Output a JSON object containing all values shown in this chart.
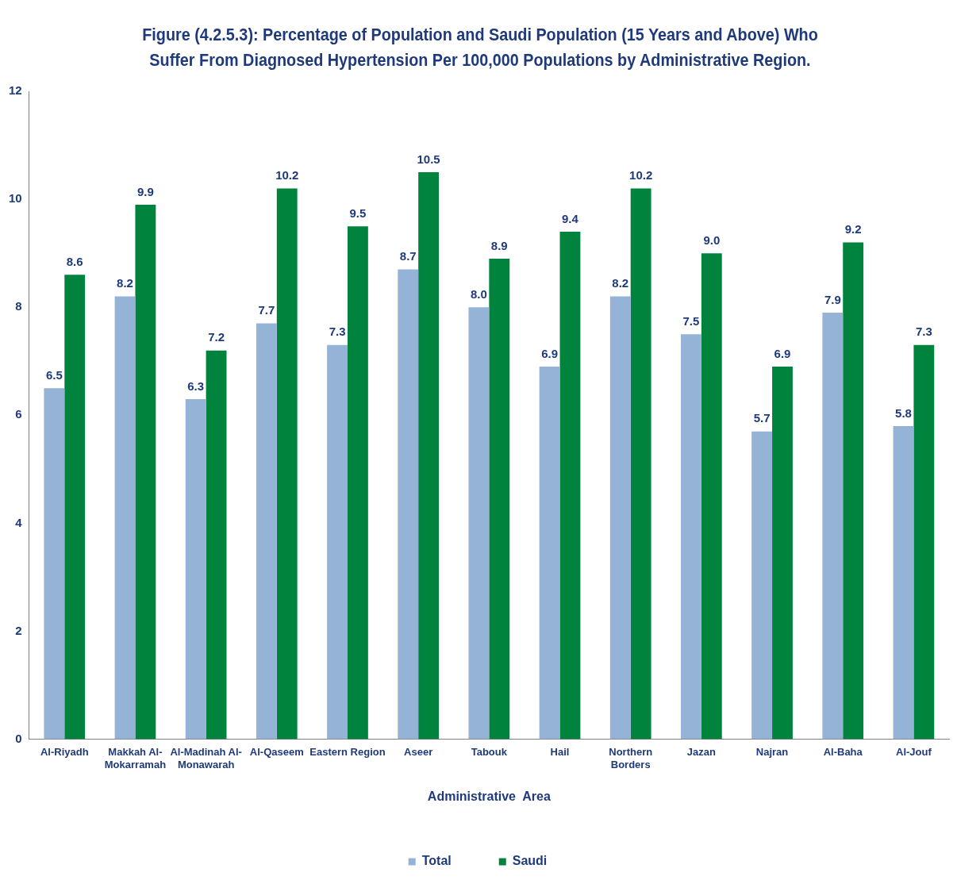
{
  "chart_data": {
    "type": "bar",
    "title": "Figure (4.2.5.3): Percentage of Population and Saudi Population (15 Years and Above) Who Suffer From Diagnosed Hypertension Per 100,000 Populations by Administrative Region.",
    "xlabel": "Administrative  Area",
    "categories": [
      "Al-Riyadh",
      "Makkah Al-Mokarramah",
      "Al-Madinah Al-Monawarah",
      "Al-Qaseem",
      "Eastern Region",
      "Aseer",
      "Tabouk",
      "Hail",
      "Northern Borders",
      "Jazan",
      "Najran",
      "Al-Baha",
      "Al-Jouf"
    ],
    "series": [
      {
        "name": "Total",
        "color": "#95b3d7",
        "values": [
          6.5,
          8.2,
          6.3,
          7.7,
          7.3,
          8.7,
          8.0,
          6.9,
          8.2,
          7.5,
          5.7,
          7.9,
          5.8
        ],
        "value_labels": [
          "6.5",
          "8.2",
          "6.3",
          "7.7",
          "7.3",
          "8.7",
          "8.0",
          "6.9",
          "8.2",
          "7.5",
          "5.7",
          "7.9",
          "5.8"
        ]
      },
      {
        "name": "Saudi",
        "color": "#00843d",
        "values": [
          8.6,
          9.9,
          7.2,
          10.2,
          9.5,
          10.5,
          8.9,
          9.4,
          10.2,
          9.0,
          6.9,
          9.2,
          7.3
        ],
        "value_labels": [
          "8.6",
          "9.9",
          "7.2",
          "10.2",
          "9.5",
          "10.5",
          "8.9",
          "9.4",
          "10.2",
          "9.0",
          "6.9",
          "9.2",
          "7.3"
        ]
      }
    ],
    "ylim": [
      0,
      12
    ],
    "yticks": [
      0,
      2,
      4,
      6,
      8,
      10,
      12
    ],
    "grid": false,
    "legend": "bottom"
  }
}
